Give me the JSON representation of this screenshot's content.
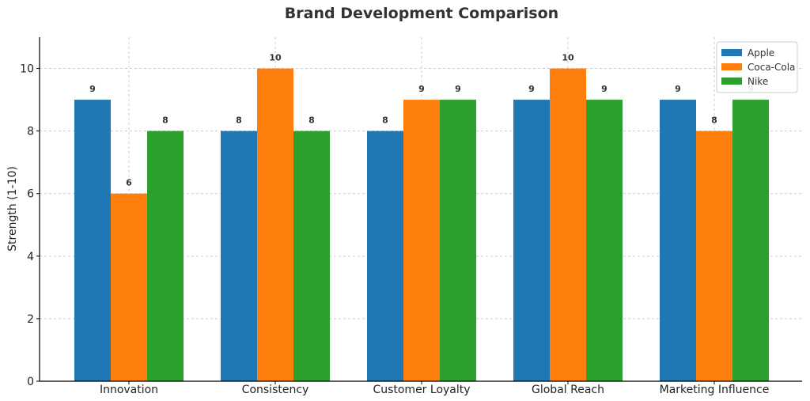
{
  "chart_data": {
    "type": "bar",
    "title": "Brand Development Comparison",
    "xlabel": "",
    "ylabel": "Strength (1-10)",
    "ylim": [
      0,
      11
    ],
    "yticks": [
      0,
      2,
      4,
      6,
      8,
      10
    ],
    "grid": true,
    "legend_position": "top-right",
    "categories": [
      "Innovation",
      "Consistency",
      "Customer Loyalty",
      "Global Reach",
      "Marketing Influence"
    ],
    "series": [
      {
        "name": "Apple",
        "color": "#1f77b4",
        "values": [
          9,
          8,
          8,
          9,
          9
        ]
      },
      {
        "name": "Coca-Cola",
        "color": "#ff7f0e",
        "values": [
          6,
          10,
          9,
          10,
          8
        ]
      },
      {
        "name": "Nike",
        "color": "#2ca02c",
        "values": [
          8,
          8,
          9,
          9,
          9
        ]
      }
    ]
  }
}
